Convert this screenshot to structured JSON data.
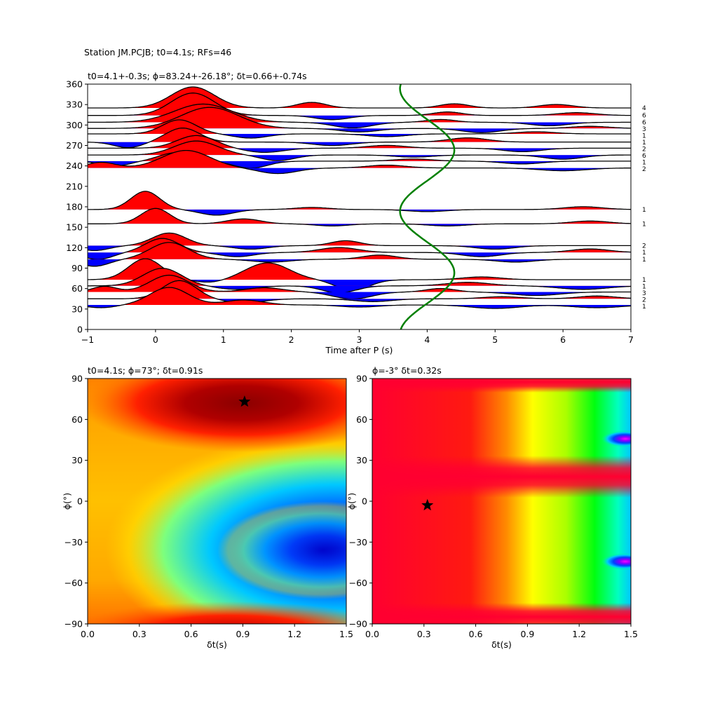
{
  "figure_title": "Station JM.PCJB; t0=4.1s; RFs=46",
  "chart_data": [
    {
      "type": "line",
      "panel": "receiver-functions",
      "title": "t0=4.1+-0.3s; ϕ=83.24+-26.18°; δt=0.66+-0.74s",
      "xlabel": "Time after P (s)",
      "ylabel": "",
      "xlim": [
        -1,
        7
      ],
      "ylim": [
        0,
        360
      ],
      "x_ticks": [
        -1,
        0,
        1,
        2,
        3,
        4,
        5,
        6,
        7
      ],
      "y_ticks": [
        0,
        30,
        60,
        90,
        120,
        150,
        180,
        210,
        240,
        270,
        300,
        330,
        360
      ],
      "positive_fill": "#ff0000",
      "negative_fill": "#0000ff",
      "fit_curve": {
        "color": "#008000",
        "t_center": 4.0,
        "amplitude": 0.4,
        "period_deg": 180,
        "phase_deg": 83.24
      },
      "traces": [
        {
          "baz": 325,
          "count": "4",
          "peaks": [
            [
              0.55,
              30,
              0.45
            ],
            [
              2.3,
              8,
              0.3
            ],
            [
              4.4,
              6,
              0.3
            ],
            [
              5.9,
              5,
              0.35
            ]
          ]
        },
        {
          "baz": 314,
          "count": "6",
          "peaks": [
            [
              0.55,
              32,
              0.45
            ],
            [
              2.6,
              -6,
              0.35
            ],
            [
              4.3,
              5,
              0.3
            ],
            [
              6.2,
              4,
              0.4
            ]
          ]
        },
        {
          "baz": 304,
          "count": "6",
          "peaks": [
            [
              0.7,
              26,
              0.6
            ],
            [
              2.9,
              -8,
              0.4
            ],
            [
              4.2,
              4,
              0.3
            ],
            [
              5.8,
              -5,
              0.4
            ]
          ]
        },
        {
          "baz": 295,
          "count": "3",
          "peaks": [
            [
              0.8,
              30,
              0.6
            ],
            [
              3.0,
              -5,
              0.4
            ],
            [
              4.8,
              -6,
              0.4
            ],
            [
              6.4,
              3,
              0.4
            ]
          ]
        },
        {
          "baz": 287,
          "count": "1",
          "peaks": [
            [
              0.35,
              20,
              0.35
            ],
            [
              1.4,
              -6,
              0.35
            ],
            [
              3.4,
              -4,
              0.4
            ],
            [
              5.6,
              3,
              0.4
            ]
          ]
        },
        {
          "baz": 275,
          "count": "1",
          "peaks": [
            [
              -0.4,
              -8,
              0.3
            ],
            [
              0.4,
              20,
              0.35
            ],
            [
              2.6,
              -5,
              0.4
            ],
            [
              4.6,
              6,
              0.4
            ]
          ]
        },
        {
          "baz": 266,
          "count": "2",
          "peaks": [
            [
              0.6,
              18,
              0.4
            ],
            [
              1.6,
              -6,
              0.4
            ],
            [
              3.4,
              4,
              0.4
            ],
            [
              5.4,
              -5,
              0.4
            ]
          ]
        },
        {
          "baz": 256,
          "count": "6",
          "peaks": [
            [
              0.6,
              20,
              0.45
            ],
            [
              1.8,
              -8,
              0.35
            ],
            [
              3.8,
              -3,
              0.4
            ],
            [
              6.0,
              -6,
              0.4
            ]
          ]
        },
        {
          "baz": 247,
          "count": "1",
          "peaks": [
            [
              -0.6,
              -7,
              0.3
            ],
            [
              0.3,
              12,
              0.35
            ],
            [
              1.4,
              -10,
              0.35
            ],
            [
              3.8,
              3,
              0.4
            ],
            [
              5.4,
              -4,
              0.4
            ]
          ]
        },
        {
          "baz": 237,
          "count": "2",
          "peaks": [
            [
              -0.8,
              8,
              0.3
            ],
            [
              0.45,
              25,
              0.5
            ],
            [
              1.8,
              -8,
              0.4
            ],
            [
              3.4,
              4,
              0.4
            ],
            [
              6.0,
              -4,
              0.5
            ]
          ]
        },
        {
          "baz": 176,
          "count": "1",
          "peaks": [
            [
              -0.15,
              26,
              0.3
            ],
            [
              0.9,
              -8,
              0.35
            ],
            [
              2.3,
              3,
              0.35
            ],
            [
              4.0,
              -3,
              0.4
            ],
            [
              6.3,
              4,
              0.4
            ]
          ]
        },
        {
          "baz": 155,
          "count": "1",
          "peaks": [
            [
              0.0,
              22,
              0.3
            ],
            [
              1.3,
              7,
              0.35
            ],
            [
              2.6,
              -3,
              0.35
            ],
            [
              4.3,
              -3,
              0.4
            ],
            [
              6.4,
              4,
              0.4
            ]
          ]
        },
        {
          "baz": 123,
          "count": "2",
          "peaks": [
            [
              -0.9,
              -7,
              0.3
            ],
            [
              0.2,
              18,
              0.35
            ],
            [
              1.4,
              -5,
              0.35
            ],
            [
              2.8,
              7,
              0.3
            ],
            [
              5.0,
              -5,
              0.4
            ]
          ]
        },
        {
          "baz": 113,
          "count": "1",
          "peaks": [
            [
              -0.85,
              -10,
              0.3
            ],
            [
              0.1,
              20,
              0.35
            ],
            [
              1.2,
              -6,
              0.35
            ],
            [
              2.7,
              7,
              0.4
            ],
            [
              4.8,
              -6,
              0.4
            ],
            [
              6.4,
              5,
              0.4
            ]
          ]
        },
        {
          "baz": 103,
          "count": "1",
          "peaks": [
            [
              -0.9,
              -10,
              0.3
            ],
            [
              0.2,
              24,
              0.4
            ],
            [
              1.7,
              -4,
              0.4
            ],
            [
              3.3,
              6,
              0.35
            ],
            [
              5.3,
              -4,
              0.4
            ]
          ]
        },
        {
          "baz": 73,
          "count": "1",
          "peaks": [
            [
              -0.15,
              30,
              0.35
            ],
            [
              0.8,
              -4,
              0.3
            ],
            [
              1.65,
              24,
              0.45
            ],
            [
              2.9,
              -15,
              0.35
            ],
            [
              4.8,
              4,
              0.4
            ]
          ]
        },
        {
          "baz": 64,
          "count": "1",
          "peaks": [
            [
              0.1,
              25,
              0.4
            ],
            [
              1.2,
              -5,
              0.4
            ],
            [
              2.7,
              -10,
              0.35
            ],
            [
              4.6,
              5,
              0.45
            ],
            [
              6.3,
              -5,
              0.5
            ]
          ]
        },
        {
          "baz": 55,
          "count": "3",
          "peaks": [
            [
              -0.75,
              8,
              0.25
            ],
            [
              0.2,
              24,
              0.4
            ],
            [
              1.6,
              6,
              0.4
            ],
            [
              2.9,
              -10,
              0.4
            ],
            [
              4.2,
              5,
              0.3
            ],
            [
              5.6,
              -5,
              0.5
            ]
          ]
        },
        {
          "baz": 45,
          "count": "2",
          "peaks": [
            [
              0.35,
              26,
              0.35
            ],
            [
              1.3,
              -6,
              0.4
            ],
            [
              3.2,
              -4,
              0.4
            ],
            [
              5.1,
              3,
              0.4
            ],
            [
              6.5,
              4,
              0.4
            ]
          ]
        },
        {
          "baz": 36,
          "count": "1",
          "peaks": [
            [
              -0.8,
              -4,
              0.3
            ],
            [
              0.2,
              25,
              0.4
            ],
            [
              1.3,
              7,
              0.4
            ],
            [
              3.0,
              -3,
              0.4
            ],
            [
              5.0,
              -5,
              0.5
            ],
            [
              6.5,
              -4,
              0.5
            ]
          ]
        }
      ]
    },
    {
      "type": "heatmap",
      "panel": "grid-search-left",
      "title": "t0=4.1s; ϕ=73°; δt=0.91s",
      "xlabel": "δt(s)",
      "ylabel": "ϕ(°)",
      "xlim": [
        0.0,
        1.5
      ],
      "ylim": [
        -90,
        90
      ],
      "x_ticks": [
        "0.0",
        "0.3",
        "0.6",
        "0.9",
        "1.2",
        "1.5"
      ],
      "y_ticks": [
        "90",
        "60",
        "30",
        "0",
        "−30",
        "−60",
        "−90"
      ],
      "colormap": "jet",
      "best": {
        "dt": 0.91,
        "phi": 73
      }
    },
    {
      "type": "heatmap",
      "panel": "grid-search-right",
      "title": "ϕ=-3° δt=0.32s",
      "xlabel": "δt(s)",
      "ylabel": "ϕ(°)",
      "xlim": [
        0.0,
        1.5
      ],
      "ylim": [
        -90,
        90
      ],
      "x_ticks": [
        "0.0",
        "0.3",
        "0.6",
        "0.9",
        "1.2",
        "1.5"
      ],
      "y_ticks": [
        "90",
        "60",
        "30",
        "0",
        "−30",
        "−60",
        "−90"
      ],
      "colormap": "hsv",
      "best": {
        "dt": 0.32,
        "phi": -3
      }
    }
  ]
}
